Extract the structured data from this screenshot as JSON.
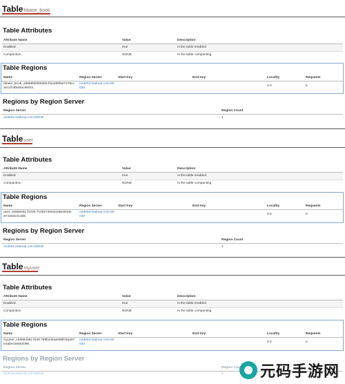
{
  "col_headers": {
    "attributes": [
      "Attribute Name",
      "Value",
      "Description"
    ],
    "regions": [
      "Name",
      "Region Server",
      "Start Key",
      "End Key",
      "Locality",
      "Requests"
    ],
    "by_server": [
      "Region Server",
      "Region Count"
    ]
  },
  "section_titles": {
    "attributes": "Table Attributes",
    "regions": "Table Regions",
    "by_server": "Regions by Region Server"
  },
  "tables": [
    {
      "word": "Table",
      "name": "hbase_book",
      "attributes": [
        {
          "name": "Enabled",
          "value": "true",
          "description": "Is the table enabled"
        },
        {
          "name": "Compaction",
          "value": "NONE",
          "description": "Is the table compacting"
        }
      ],
      "region": {
        "name": "hbase_book,,1585890699359.b2a488fae7479cc ae1d7df846ac96021.",
        "server": "node02.hadoop.com:60 030",
        "start_key": "",
        "end_key": "",
        "locality": "1.0",
        "requests": "6"
      },
      "server_row": {
        "server": "node02.hadoop.com:60030",
        "count": "1"
      }
    },
    {
      "word": "Table",
      "name": "user",
      "attributes": [
        {
          "name": "Enabled",
          "value": "true",
          "description": "Is the table enabled"
        },
        {
          "name": "Compaction",
          "value": "NONE",
          "description": "Is the table compacting"
        }
      ],
      "region": {
        "name": "user,,1585840172235.71062740043266493de 57433d2413d5.",
        "server": "node02.hadoop.com:60 030",
        "start_key": "",
        "end_key": "",
        "locality": "0.0",
        "requests": "0"
      },
      "server_row": {
        "server": "node02.hadoop.com:60030",
        "count": "1"
      }
    },
    {
      "word": "Table",
      "name": "myuser",
      "attributes": [
        {
          "name": "Enabled",
          "value": "true",
          "description": "Is the table enabled"
        },
        {
          "name": "Compaction",
          "value": "NONE",
          "description": "Is the table compacting"
        }
      ],
      "region": {
        "name": "myuser,,1585840817528.789b445ae898fc8aa07 e4abec26652096.",
        "server": "node02.hadoop.com:60 030",
        "start_key": "",
        "end_key": "",
        "locality": "0.0",
        "requests": "0"
      },
      "server_row": {
        "server": "node02.hadoop.com:60030",
        "count": "1"
      }
    }
  ],
  "watermark": {
    "text": "元码手游网"
  },
  "colors": {
    "accent_underline": "#b03a2e",
    "link": "#3a78b8",
    "box_border": "#7ea6cf"
  }
}
